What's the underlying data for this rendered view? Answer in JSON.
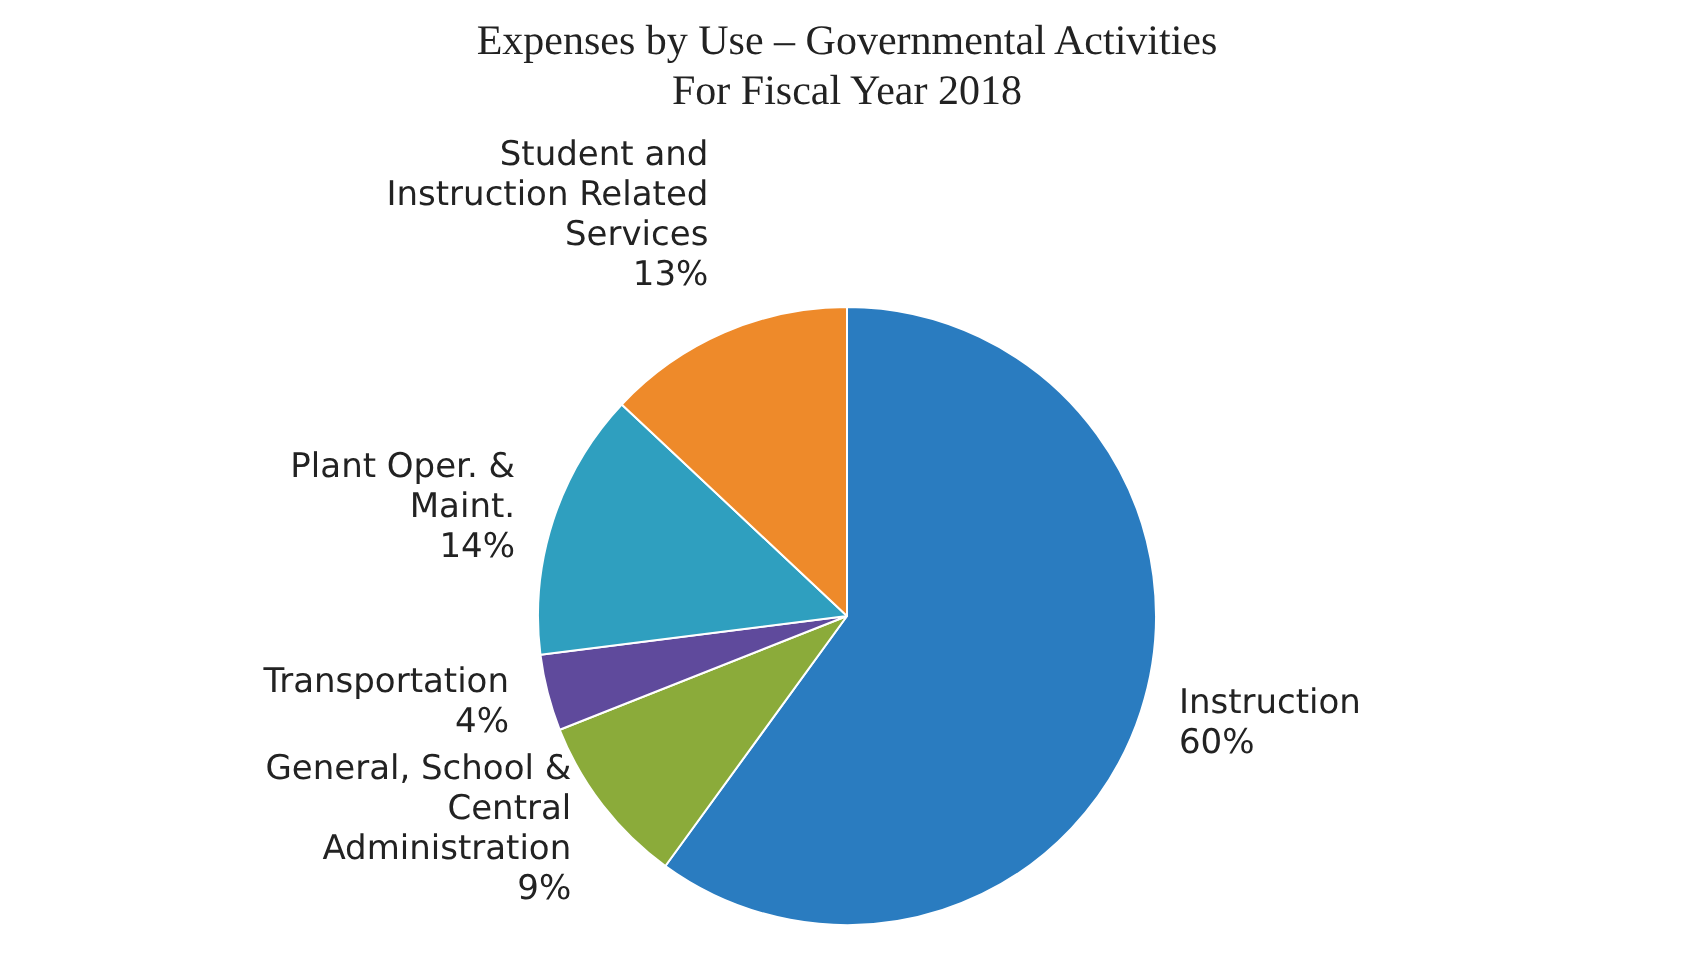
{
  "chart_data": {
    "type": "pie",
    "title": "Expenses by Use – Governmental Activities",
    "subtitle": "For Fiscal Year 2018",
    "categories": [
      "Instruction",
      "General, School & Central Administration",
      "Transportation",
      "Plant Oper. & Maint.",
      "Student and Instruction Related Services"
    ],
    "values": [
      60,
      9,
      4,
      14,
      13
    ],
    "value_labels": [
      "60%",
      "9%",
      "4%",
      "14%",
      "13%"
    ],
    "colors": [
      "#2a7cc0",
      "#8bab3a",
      "#5f4a9c",
      "#2f9fbf",
      "#ee8a2a"
    ],
    "legend": false
  }
}
